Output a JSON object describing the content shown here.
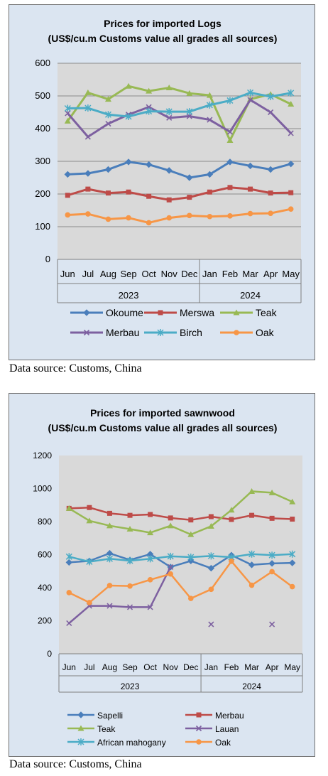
{
  "charts": [
    {
      "title_line1": "Prices for imported Logs",
      "title_line2": "(US$/cu.m Customs value all grades all sources)",
      "source": "Data source: Customs, China"
    },
    {
      "title_line1": "Prices for imported sawnwood",
      "title_line2": "(US$/cu.m Customs value all grades all sources)",
      "source": "Data source: Customs, China"
    }
  ],
  "chart_data": [
    {
      "type": "line",
      "title": "Prices for imported Logs (US$/cu.m Customs value all grades all sources)",
      "categories": [
        "Jun",
        "Jul",
        "Aug",
        "Sep",
        "Oct",
        "Nov",
        "Dec",
        "Jan",
        "Feb",
        "Mar",
        "Apr",
        "May"
      ],
      "year_groups": [
        {
          "label": "2023",
          "count": 7
        },
        {
          "label": "2024",
          "count": 5
        }
      ],
      "ylim": [
        0,
        600
      ],
      "yticks": [
        0,
        100,
        200,
        300,
        400,
        500,
        600
      ],
      "grid": true,
      "legend_position": "bottom",
      "series": [
        {
          "name": "Okoume",
          "color": "#4a7ebb",
          "marker": "diamond",
          "values": [
            260,
            263,
            275,
            298,
            290,
            272,
            250,
            260,
            298,
            286,
            275,
            292
          ]
        },
        {
          "name": "Merswa",
          "color": "#be4b48",
          "marker": "square",
          "values": [
            196,
            215,
            203,
            206,
            193,
            182,
            190,
            206,
            220,
            215,
            203,
            204
          ]
        },
        {
          "name": "Teak",
          "color": "#98b954",
          "marker": "triangle",
          "values": [
            423,
            510,
            490,
            530,
            515,
            525,
            508,
            502,
            364,
            490,
            505,
            475
          ]
        },
        {
          "name": "Merbau",
          "color": "#7d60a0",
          "marker": "x",
          "values": [
            447,
            375,
            415,
            443,
            466,
            433,
            438,
            427,
            390,
            488,
            450,
            386
          ]
        },
        {
          "name": "Birch",
          "color": "#4bacc6",
          "marker": "star",
          "values": [
            462,
            463,
            443,
            437,
            453,
            452,
            452,
            472,
            486,
            510,
            498,
            509
          ]
        },
        {
          "name": "Oak",
          "color": "#f79646",
          "marker": "circle",
          "values": [
            136,
            139,
            123,
            127,
            112,
            127,
            134,
            131,
            133,
            140,
            141,
            154
          ]
        }
      ]
    },
    {
      "type": "line",
      "title": "Prices for imported sawnwood (US$/cu.m Customs value all grades all sources)",
      "categories": [
        "Jun",
        "Jul",
        "Aug",
        "Sep",
        "Oct",
        "Nov",
        "Dec",
        "Jan",
        "Feb",
        "Mar",
        "Apr",
        "May"
      ],
      "year_groups": [
        {
          "label": "2023",
          "count": 7
        },
        {
          "label": "2024",
          "count": 5
        }
      ],
      "ylim": [
        0,
        1200
      ],
      "yticks": [
        0,
        200,
        400,
        600,
        800,
        1000,
        1200
      ],
      "grid": false,
      "legend_position": "bottom",
      "series": [
        {
          "name": "Sapelli",
          "color": "#4a7ebb",
          "marker": "diamond",
          "values": [
            553,
            562,
            608,
            568,
            603,
            525,
            562,
            518,
            597,
            538,
            547,
            550
          ]
        },
        {
          "name": "Merbau",
          "color": "#be4b48",
          "marker": "square",
          "values": [
            880,
            885,
            850,
            838,
            843,
            822,
            810,
            830,
            813,
            838,
            820,
            815
          ]
        },
        {
          "name": "Teak",
          "color": "#98b954",
          "marker": "triangle",
          "values": [
            880,
            805,
            775,
            755,
            733,
            775,
            722,
            772,
            870,
            983,
            975,
            920
          ]
        },
        {
          "name": "Lauan",
          "color": "#7d60a0",
          "marker": "x",
          "values": [
            185,
            290,
            290,
            282,
            282,
            525,
            null,
            178,
            null,
            null,
            178,
            null
          ]
        },
        {
          "name": "African mahogany",
          "color": "#4bacc6",
          "marker": "star",
          "values": [
            588,
            557,
            575,
            563,
            575,
            590,
            585,
            592,
            585,
            603,
            597,
            603
          ]
        },
        {
          "name": "Oak",
          "color": "#f79646",
          "marker": "circle",
          "values": [
            370,
            310,
            413,
            410,
            448,
            483,
            335,
            390,
            560,
            415,
            497,
            406
          ]
        }
      ]
    }
  ]
}
